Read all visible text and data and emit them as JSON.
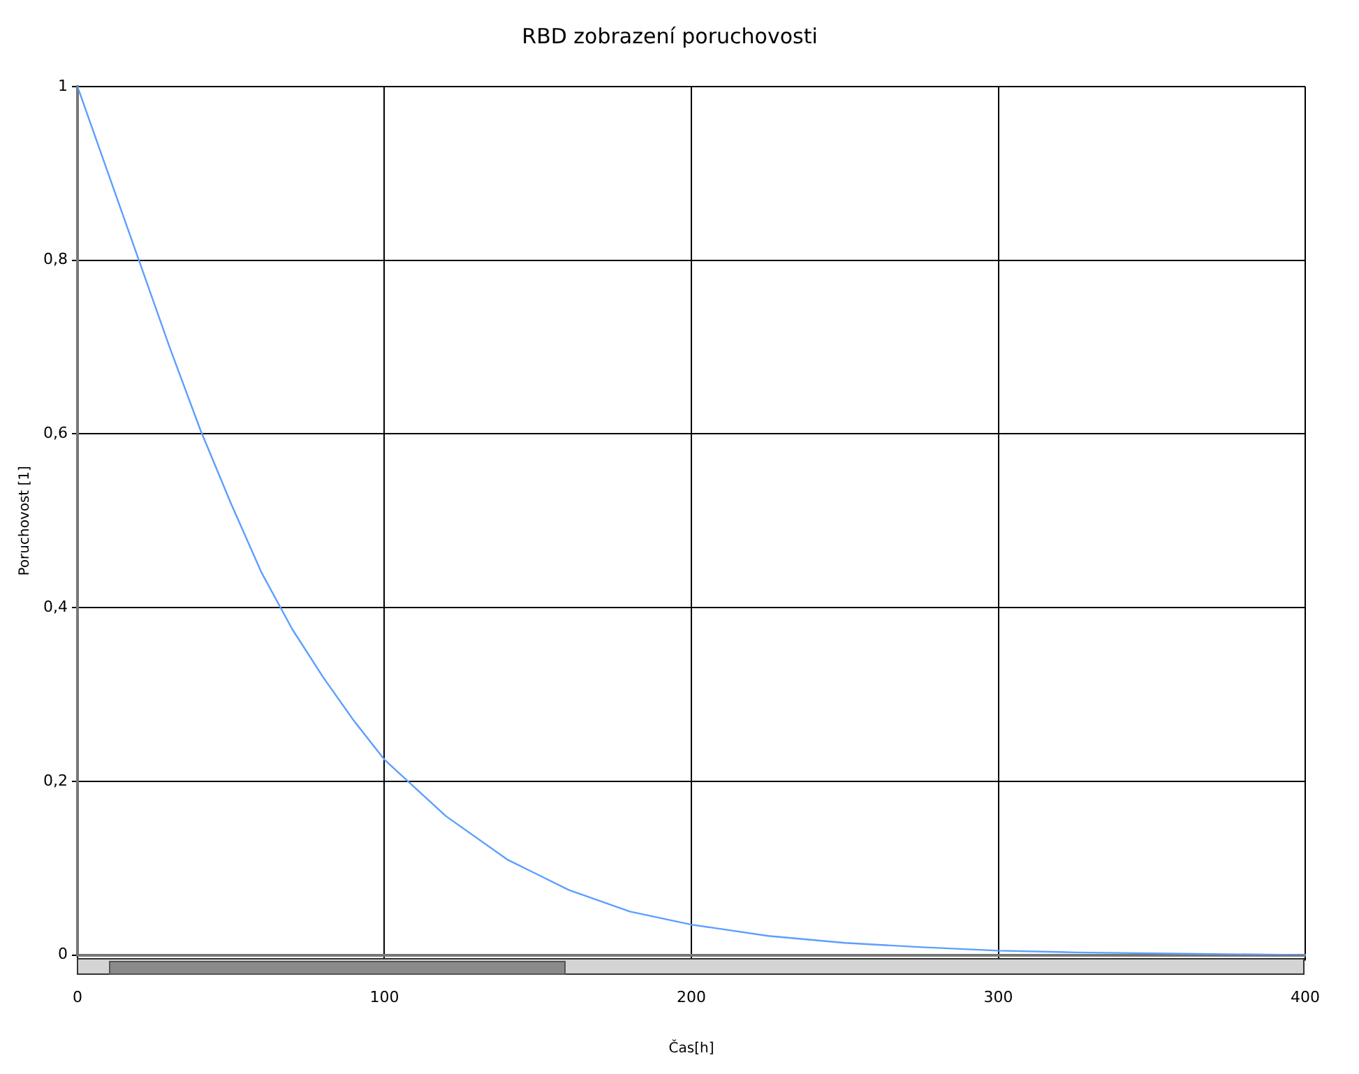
{
  "chart_data": {
    "type": "line",
    "title": "RBD zobrazení poruchovosti",
    "xlabel": "Čas[h]",
    "ylabel": "Poruchovost [1]",
    "x": [
      0,
      10,
      20,
      30,
      40,
      50,
      60,
      70,
      80,
      90,
      100,
      120,
      140,
      160,
      180,
      200,
      225,
      250,
      275,
      300,
      325,
      350,
      375,
      400
    ],
    "series": [
      {
        "color": "#5c9eff",
        "values": [
          1,
          0.9,
          0.8,
          0.7,
          0.605,
          0.52,
          0.44,
          0.375,
          0.32,
          0.27,
          0.225,
          0.16,
          0.11,
          0.075,
          0.05,
          0.035,
          0.022,
          0.014,
          0.009,
          0.005,
          0.003,
          0.002,
          0.001,
          0
        ]
      }
    ],
    "xlim": [
      0,
      400
    ],
    "xticks": [
      0,
      100,
      200,
      300,
      400
    ],
    "ylim": [
      0,
      1
    ],
    "yticks": [
      0,
      {
        "value": 0.2,
        "label": "0,2"
      },
      {
        "value": 0.4,
        "label": "0,4"
      },
      {
        "value": 0.6,
        "label": "0,6"
      },
      {
        "value": 0.8,
        "label": "0,8"
      },
      1
    ],
    "grid": true,
    "legend": false,
    "marker": "none",
    "line_style": "solid"
  }
}
